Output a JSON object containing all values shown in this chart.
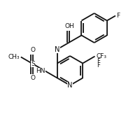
{
  "bg": "#ffffff",
  "lc": "#111111",
  "lw": 1.3,
  "fs": 6.5,
  "BL": 20
}
